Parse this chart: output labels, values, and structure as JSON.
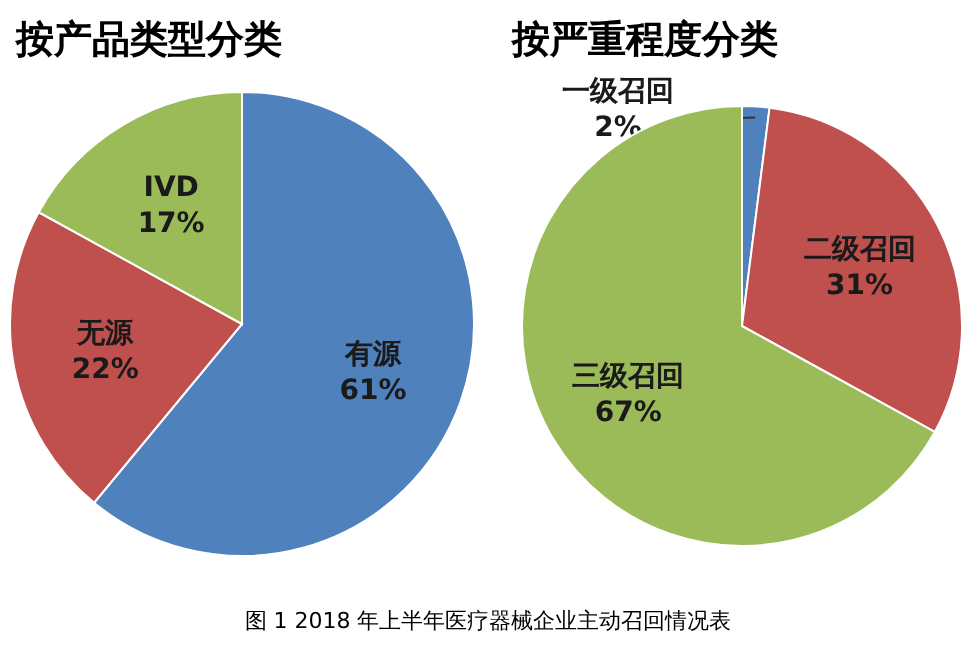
{
  "chart_data": [
    {
      "type": "pie",
      "title": "按产品类型分类",
      "categories": [
        "有源",
        "无源",
        "IVD"
      ],
      "values": [
        61,
        22,
        17
      ],
      "colors": [
        "#4f81bd",
        "#c0504d",
        "#9bbb59"
      ],
      "value_labels": [
        "61%",
        "22%",
        "17%"
      ],
      "annotations": [
        "图 1 2018 年上半年医疗器械企业主动召回情况表"
      ]
    },
    {
      "type": "pie",
      "title": "按严重程度分类",
      "categories": [
        "一级召回",
        "二级召回",
        "三级召回"
      ],
      "values": [
        2,
        31,
        67
      ],
      "colors": [
        "#4f81bd",
        "#c0504d",
        "#9bbb59"
      ],
      "value_labels": [
        "2%",
        "31%",
        "67%"
      ]
    }
  ]
}
